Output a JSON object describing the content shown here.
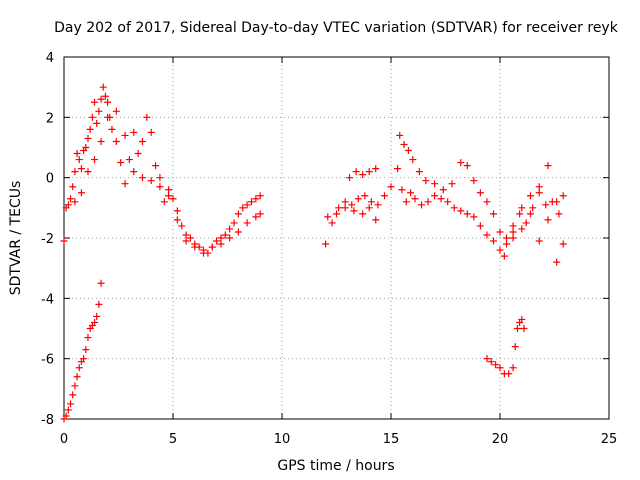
{
  "chart_data": {
    "type": "scatter",
    "title": "Day 202 of 2017, Sidereal Day-to-day VTEC variation (SDTVAR) for receiver reyk",
    "xlabel": "GPS time / hours",
    "ylabel": "SDTVAR / TECUs",
    "xlim": [
      0,
      25
    ],
    "ylim": [
      -8,
      4
    ],
    "xticks": [
      "0",
      "5",
      "10",
      "15",
      "20",
      "25"
    ],
    "yticks": [
      "-8",
      "-6",
      "-4",
      "-2",
      "0",
      "2",
      "4"
    ],
    "grid": true,
    "marker": "+",
    "color": "#ff0000",
    "series": [
      {
        "name": "main",
        "x": [
          0.0,
          0.1,
          0.2,
          0.3,
          0.4,
          0.5,
          0.6,
          0.7,
          0.8,
          0.9,
          1.0,
          1.1,
          1.2,
          1.3,
          1.4,
          1.5,
          1.6,
          1.7,
          1.8,
          1.9,
          2.0,
          2.1,
          2.2,
          2.4,
          2.6,
          2.8,
          3.0,
          3.2,
          3.4,
          3.6,
          3.8,
          4.0,
          4.2,
          4.4,
          4.6,
          4.8,
          5.0,
          5.2,
          5.4,
          5.6,
          5.8,
          6.0,
          6.2,
          6.4,
          6.6,
          6.8,
          7.0,
          7.2,
          7.4,
          7.6,
          7.8,
          8.0,
          8.2,
          8.4,
          8.6,
          8.8,
          9.0
        ],
        "y": [
          -2.1,
          -1.0,
          -0.9,
          -0.7,
          -0.3,
          0.2,
          0.8,
          0.6,
          0.3,
          0.9,
          1.0,
          1.3,
          1.6,
          2.0,
          2.5,
          1.8,
          2.2,
          2.6,
          3.0,
          2.7,
          2.5,
          2.0,
          1.6,
          1.2,
          0.5,
          -0.2,
          0.6,
          1.5,
          0.8,
          1.2,
          2.0,
          1.5,
          0.4,
          0.0,
          -0.8,
          -0.4,
          -0.7,
          -1.1,
          -1.6,
          -1.9,
          -2.0,
          -2.2,
          -2.3,
          -2.4,
          -2.5,
          -2.3,
          -2.1,
          -2.0,
          -1.9,
          -1.7,
          -1.5,
          -1.2,
          -1.0,
          -0.9,
          -0.8,
          -0.7,
          -0.6
        ]
      },
      {
        "name": "main-lower",
        "x": [
          0.5,
          0.8,
          1.1,
          1.4,
          1.7,
          2.0,
          2.4,
          2.8,
          3.2,
          3.6,
          4.0,
          4.4,
          4.8,
          5.2,
          5.6,
          6.0,
          6.4,
          6.8,
          7.2,
          7.6,
          8.0,
          8.4,
          8.8,
          9.0
        ],
        "y": [
          -0.8,
          -0.5,
          0.2,
          0.6,
          1.2,
          2.0,
          2.2,
          1.4,
          0.2,
          0.0,
          -0.1,
          -0.3,
          -0.6,
          -1.4,
          -2.1,
          -2.3,
          -2.5,
          -2.3,
          -2.2,
          -2.0,
          -1.8,
          -1.5,
          -1.3,
          -1.2
        ]
      },
      {
        "name": "early-low",
        "x": [
          0.0,
          0.1,
          0.2,
          0.3,
          0.4,
          0.5,
          0.6,
          0.7,
          0.8,
          0.9,
          1.0,
          1.1,
          1.2,
          1.3,
          1.4,
          1.5,
          1.6,
          1.7
        ],
        "y": [
          -8.0,
          -7.9,
          -7.7,
          -7.5,
          -7.2,
          -6.9,
          -6.6,
          -6.3,
          -6.1,
          -6.0,
          -5.7,
          -5.3,
          -5.0,
          -4.9,
          -4.8,
          -4.6,
          -4.2,
          -3.5
        ]
      },
      {
        "name": "evening",
        "x": [
          12.0,
          12.3,
          12.6,
          12.9,
          13.2,
          13.5,
          13.8,
          14.1,
          14.4,
          14.7,
          15.0
        ],
        "y": [
          -2.2,
          -1.5,
          -1.0,
          -0.8,
          -0.9,
          -0.7,
          -0.6,
          -0.8,
          -0.9,
          -0.6,
          -0.3
        ]
      },
      {
        "name": "evening-b",
        "x": [
          12.1,
          12.5,
          12.9,
          13.3,
          13.7,
          14.0,
          14.3
        ],
        "y": [
          -1.3,
          -1.2,
          -1.0,
          -1.1,
          -1.2,
          -1.0,
          -1.4
        ]
      },
      {
        "name": "evening-upper",
        "x": [
          13.1,
          13.4,
          13.7,
          14.0,
          14.3
        ],
        "y": [
          0.0,
          0.2,
          0.1,
          0.2,
          0.3
        ]
      },
      {
        "name": "late",
        "x": [
          15.3,
          15.5,
          15.7,
          15.9,
          16.1,
          16.4,
          16.7,
          17.0,
          17.3,
          17.6,
          17.9,
          18.2,
          18.5,
          18.8,
          19.1,
          19.4,
          19.7,
          20.0,
          20.3,
          20.6,
          20.9,
          21.2,
          21.5,
          21.8,
          22.1,
          22.4,
          22.7,
          22.9
        ],
        "y": [
          0.3,
          -0.4,
          -0.8,
          -0.5,
          -0.7,
          -0.9,
          -0.8,
          -0.6,
          -0.7,
          -0.8,
          -1.0,
          -1.1,
          -1.2,
          -1.3,
          -1.6,
          -1.9,
          -2.1,
          -2.4,
          -2.2,
          -1.8,
          -1.2,
          -1.5,
          -1.0,
          -0.5,
          -0.9,
          -0.8,
          -1.2,
          -0.6
        ]
      },
      {
        "name": "late-upper",
        "x": [
          15.4,
          15.6,
          15.8,
          16.0,
          16.3,
          16.6,
          17.0,
          17.4,
          17.8,
          18.2,
          18.5,
          18.8,
          19.1,
          19.4,
          19.7,
          20.0,
          20.3,
          20.6,
          21.0,
          21.4,
          21.8,
          22.2,
          22.6
        ],
        "y": [
          1.4,
          1.1,
          0.9,
          0.6,
          0.2,
          -0.1,
          -0.2,
          -0.4,
          -0.2,
          0.5,
          0.4,
          -0.1,
          -0.5,
          -0.8,
          -1.2,
          -1.8,
          -2.0,
          -1.6,
          -1.0,
          -0.6,
          -0.3,
          0.4,
          -0.8
        ]
      },
      {
        "name": "late-spread",
        "x": [
          20.2,
          20.6,
          21.0,
          21.4,
          21.8,
          22.2,
          22.6,
          22.9
        ],
        "y": [
          -2.6,
          -2.0,
          -1.7,
          -1.2,
          -2.1,
          -1.4,
          -2.8,
          -2.2
        ]
      },
      {
        "name": "late-low",
        "x": [
          19.4,
          19.6,
          19.8,
          20.0,
          20.2,
          20.4,
          20.6,
          20.7,
          20.8,
          20.9,
          21.0,
          21.1
        ],
        "y": [
          -6.0,
          -6.1,
          -6.2,
          -6.3,
          -6.5,
          -6.5,
          -6.3,
          -5.6,
          -5.0,
          -4.8,
          -4.7,
          -5.0
        ]
      }
    ]
  }
}
